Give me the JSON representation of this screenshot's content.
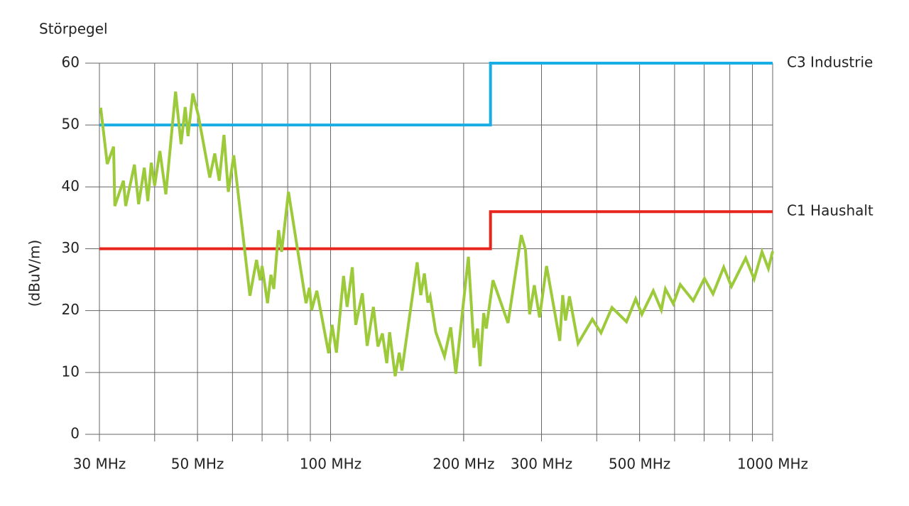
{
  "chart_data": {
    "type": "line",
    "ylabel_top": "Störpegel",
    "ylabel": "(dBuV/m)",
    "xscale": "log",
    "xlim": [
      30,
      1000
    ],
    "ylim": [
      0,
      60
    ],
    "yticks": [
      0,
      10,
      20,
      30,
      40,
      50,
      60
    ],
    "xticks": [
      {
        "value": 30,
        "label": "30 MHz"
      },
      {
        "value": 50,
        "label": "50 MHz"
      },
      {
        "value": 100,
        "label": "100 MHz"
      },
      {
        "value": 200,
        "label": "200 MHz"
      },
      {
        "value": 300,
        "label": "300 MHz"
      },
      {
        "value": 500,
        "label": "500 MHz"
      },
      {
        "value": 1000,
        "label": "1000 MHz"
      }
    ],
    "xgrid": [
      30,
      40,
      50,
      60,
      70,
      80,
      90,
      100,
      200,
      300,
      400,
      500,
      600,
      700,
      800,
      900,
      1000
    ],
    "grid": true,
    "series": [
      {
        "name": "C3 Industrie",
        "color": "#19ade6",
        "x": [
          30,
          230,
          230,
          1000
        ],
        "values": [
          50,
          50,
          60,
          60
        ]
      },
      {
        "name": "C1 Haushalt",
        "color": "#e8251c",
        "x": [
          30,
          230,
          230,
          1000
        ],
        "values": [
          30,
          30,
          36,
          36
        ]
      },
      {
        "color": "#9cca3b",
        "x": [
          30.2,
          31.25,
          32.3,
          32.5,
          34.0,
          34.4,
          36.0,
          36.8,
          37.9,
          38.6,
          39.3,
          40.0,
          41.1,
          42.4,
          44.6,
          45.9,
          46.9,
          47.6,
          48.8,
          50.2,
          53.3,
          54.7,
          56.0,
          57.4,
          58.7,
          60.4,
          65.7,
          68.0,
          69.3,
          70.0,
          72.0,
          73.3,
          74.4,
          76.3,
          77.5,
          80.3,
          88.0,
          89.6,
          90.6,
          93.1,
          99.0,
          100.8,
          103.1,
          107,
          109,
          112,
          114,
          118,
          121,
          125,
          128,
          131,
          134,
          136,
          140,
          143,
          145,
          157,
          160,
          163,
          166,
          168,
          173,
          181,
          187,
          192,
          205,
          211,
          215,
          218,
          222,
          225,
          233,
          252,
          270,
          276,
          282,
          289,
          297,
          308,
          330,
          335,
          340,
          347,
          363,
          391,
          409,
          433,
          467,
          490,
          506,
          537,
          560,
          572,
          596,
          618,
          661,
          701,
          733,
          775,
          807,
          869,
          908,
          946,
          978,
          1000
        ],
        "values": [
          52.8,
          43.7,
          46.5,
          36.9,
          41,
          36.9,
          43.6,
          37.2,
          43.1,
          37.7,
          43.9,
          40.2,
          45.8,
          38.8,
          55.4,
          46.9,
          52.9,
          48.2,
          55.1,
          51.6,
          41.5,
          45.4,
          41,
          48.4,
          39.2,
          45.1,
          22.4,
          28.2,
          24.9,
          27.2,
          21.2,
          25.8,
          23.5,
          33,
          29.5,
          39.2,
          21.2,
          23.7,
          20.1,
          23.2,
          13.1,
          17.7,
          13.2,
          25.6,
          20.6,
          27,
          17.7,
          22.8,
          14.3,
          20.6,
          14.2,
          16.3,
          11.5,
          16.5,
          9.4,
          13.2,
          10.3,
          27.8,
          22.5,
          26,
          21.3,
          22.3,
          16.5,
          12.6,
          17.3,
          9.8,
          28.7,
          14,
          17.1,
          11,
          19.6,
          17.1,
          24.9,
          18,
          32.2,
          29.8,
          19.4,
          24.1,
          18.9,
          27.2,
          15.1,
          22.5,
          18.4,
          22.3,
          14.7,
          18.6,
          16.4,
          20.5,
          18.2,
          21.9,
          19.4,
          23.2,
          20.1,
          23.5,
          21.1,
          24.2,
          21.6,
          25.2,
          22.7,
          27,
          23.9,
          28.5,
          25.1,
          29.5,
          26.8,
          29.6
        ]
      }
    ]
  }
}
